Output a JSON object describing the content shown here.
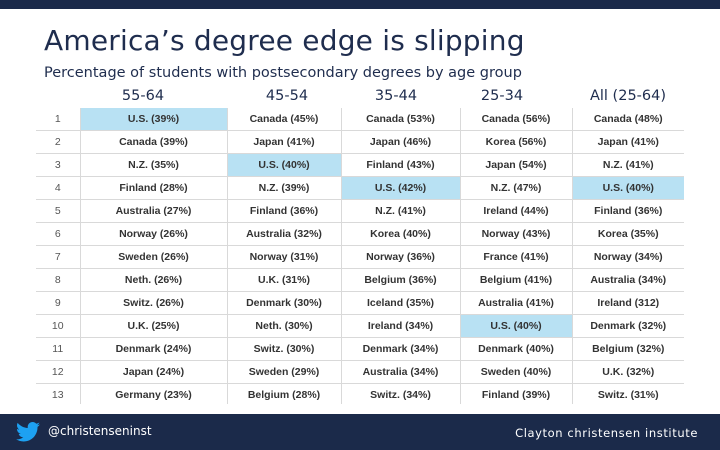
{
  "slide": {
    "title": "America’s degree edge is slipping",
    "subtitle": "Percentage of students with postsecondary degrees by age group"
  },
  "columns": [
    "55-64",
    "45-54",
    "35-44",
    "25-34",
    "All (25-64)"
  ],
  "rows": [
    {
      "rank": "1",
      "cells": [
        "U.S. (39%)",
        "Canada (45%)",
        "Canada (53%)",
        "Canada (56%)",
        "Canada (48%)"
      ],
      "highlight": [
        true,
        false,
        false,
        false,
        false
      ]
    },
    {
      "rank": "2",
      "cells": [
        "Canada (39%)",
        "Japan (41%)",
        "Japan (46%)",
        "Korea (56%)",
        "Japan (41%)"
      ],
      "highlight": [
        false,
        false,
        false,
        false,
        false
      ]
    },
    {
      "rank": "3",
      "cells": [
        "N.Z. (35%)",
        "U.S. (40%)",
        "Finland (43%)",
        "Japan (54%)",
        "N.Z. (41%)"
      ],
      "highlight": [
        false,
        true,
        false,
        false,
        false
      ]
    },
    {
      "rank": "4",
      "cells": [
        "Finland (28%)",
        "N.Z. (39%)",
        "U.S. (42%)",
        "N.Z. (47%)",
        "U.S. (40%)"
      ],
      "highlight": [
        false,
        false,
        true,
        false,
        true
      ]
    },
    {
      "rank": "5",
      "cells": [
        "Australia (27%)",
        "Finland (36%)",
        "N.Z. (41%)",
        "Ireland (44%)",
        "Finland (36%)"
      ],
      "highlight": [
        false,
        false,
        false,
        false,
        false
      ]
    },
    {
      "rank": "6",
      "cells": [
        "Norway (26%)",
        "Australia (32%)",
        "Korea (40%)",
        "Norway (43%)",
        "Korea (35%)"
      ],
      "highlight": [
        false,
        false,
        false,
        false,
        false
      ]
    },
    {
      "rank": "7",
      "cells": [
        "Sweden (26%)",
        "Norway (31%)",
        "Norway (36%)",
        "France (41%)",
        "Norway (34%)"
      ],
      "highlight": [
        false,
        false,
        false,
        false,
        false
      ]
    },
    {
      "rank": "8",
      "cells": [
        "Neth. (26%)",
        "U.K. (31%)",
        "Belgium (36%)",
        "Belgium (41%)",
        "Australia (34%)"
      ],
      "highlight": [
        false,
        false,
        false,
        false,
        false
      ]
    },
    {
      "rank": "9",
      "cells": [
        "Switz. (26%)",
        "Denmark (30%)",
        "Iceland (35%)",
        "Australia (41%)",
        "Ireland (312)"
      ],
      "highlight": [
        false,
        false,
        false,
        false,
        false
      ]
    },
    {
      "rank": "10",
      "cells": [
        "U.K. (25%)",
        "Neth. (30%)",
        "Ireland (34%)",
        "U.S. (40%)",
        "Denmark (32%)"
      ],
      "highlight": [
        false,
        false,
        false,
        true,
        false
      ]
    },
    {
      "rank": "11",
      "cells": [
        "Denmark (24%)",
        "Switz. (30%)",
        "Denmark (34%)",
        "Denmark (40%)",
        "Belgium (32%)"
      ],
      "highlight": [
        false,
        false,
        false,
        false,
        false
      ]
    },
    {
      "rank": "12",
      "cells": [
        "Japan (24%)",
        "Sweden (29%)",
        "Australia (34%)",
        "Sweden (40%)",
        "U.K. (32%)"
      ],
      "highlight": [
        false,
        false,
        false,
        false,
        false
      ]
    },
    {
      "rank": "13",
      "cells": [
        "Germany (23%)",
        "Belgium (28%)",
        "Switz. (34%)",
        "Finland (39%)",
        "Switz. (31%)"
      ],
      "highlight": [
        false,
        false,
        false,
        false,
        false
      ]
    }
  ],
  "colors": {
    "highlight": "#b8e1f3",
    "footer": "#1b2a4a",
    "title": "#1f2d4e"
  },
  "footer": {
    "icon": "twitter-bird-icon",
    "handle": "@christenseninst",
    "brand": "Clayton christensen institute"
  }
}
